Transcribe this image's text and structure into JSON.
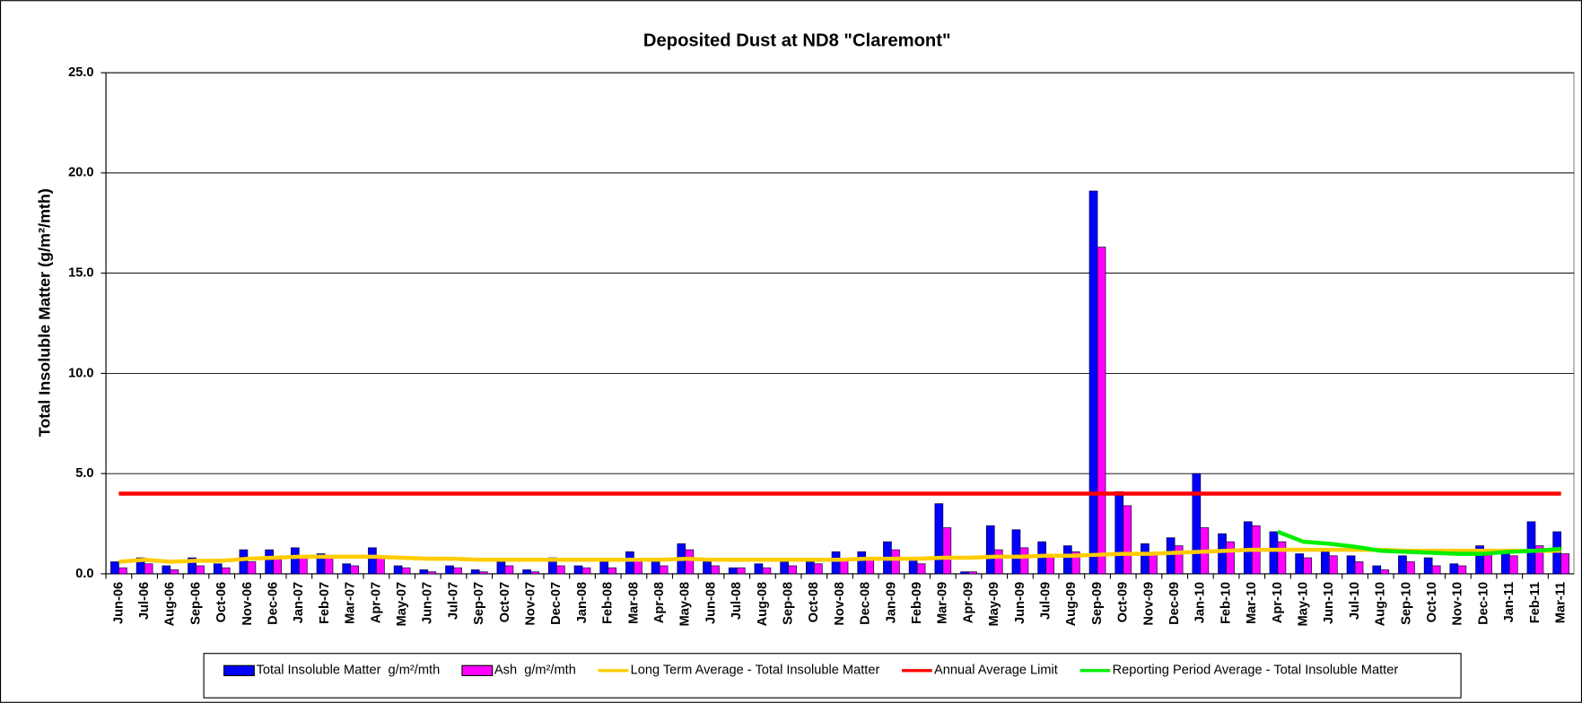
{
  "chart_data": {
    "type": "bar_line",
    "title": "Deposited Dust at ND8 \"Claremont\"",
    "y_label": "Total Insoluble Matter  (g/m²/mth)",
    "categories": [
      "Jun-06",
      "Jul-06",
      "Aug-06",
      "Sep-06",
      "Oct-06",
      "Nov-06",
      "Dec-06",
      "Jan-07",
      "Feb-07",
      "Mar-07",
      "Apr-07",
      "May-07",
      "Jun-07",
      "Jul-07",
      "Sep-07",
      "Oct-07",
      "Nov-07",
      "Dec-07",
      "Jan-08",
      "Feb-08",
      "Mar-08",
      "Apr-08",
      "May-08",
      "Jun-08",
      "Jul-08",
      "Aug-08",
      "Sep-08",
      "Oct-08",
      "Nov-08",
      "Dec-08",
      "Jan-09",
      "Feb-09",
      "Mar-09",
      "Apr-09",
      "May-09",
      "Jun-09",
      "Jul-09",
      "Aug-09",
      "Sep-09",
      "Oct-09",
      "Nov-09",
      "Dec-09",
      "Jan-10",
      "Feb-10",
      "Mar-10",
      "Apr-10",
      "May-10",
      "Jun-10",
      "Jul-10",
      "Aug-10",
      "Sep-10",
      "Oct-10",
      "Nov-10",
      "Dec-10",
      "Jan-11",
      "Feb-11",
      "Mar-11"
    ],
    "series": [
      {
        "name": "Total Insoluble Matter  g/m²/mth",
        "kind": "bar",
        "color": "#0000ff",
        "values": [
          0.6,
          0.8,
          0.4,
          0.8,
          0.5,
          1.2,
          1.2,
          1.3,
          1.0,
          0.5,
          1.3,
          0.4,
          0.2,
          0.4,
          0.2,
          0.6,
          0.2,
          0.8,
          0.4,
          0.6,
          1.1,
          0.6,
          1.5,
          0.6,
          0.3,
          0.5,
          0.6,
          0.6,
          1.1,
          1.1,
          1.6,
          0.7,
          3.5,
          0.1,
          2.4,
          2.2,
          1.6,
          1.4,
          19.1,
          4.1,
          1.5,
          1.8,
          5.0,
          2.0,
          2.6,
          2.1,
          1.0,
          1.1,
          0.9,
          0.4,
          0.9,
          0.8,
          0.5,
          1.4,
          1.0,
          2.6,
          2.1
        ]
      },
      {
        "name": "Ash  g/m²/mth",
        "kind": "bar",
        "color": "#ff00ff",
        "values": [
          0.3,
          0.5,
          0.2,
          0.4,
          0.3,
          0.6,
          0.8,
          0.8,
          0.9,
          0.4,
          0.8,
          0.3,
          0.1,
          0.3,
          0.1,
          0.4,
          0.1,
          0.4,
          0.3,
          0.3,
          0.7,
          0.4,
          1.2,
          0.4,
          0.3,
          0.3,
          0.4,
          0.5,
          0.7,
          0.7,
          1.2,
          0.5,
          2.3,
          0.1,
          1.2,
          1.3,
          0.9,
          1.1,
          16.3,
          3.4,
          1.0,
          1.4,
          2.3,
          1.6,
          2.4,
          1.6,
          0.8,
          0.9,
          0.6,
          0.2,
          0.6,
          0.4,
          0.4,
          1.2,
          0.9,
          1.4,
          1.0
        ]
      },
      {
        "name": "Long Term Average - Total Insoluble Matter",
        "kind": "line",
        "color": "#ffcc00",
        "values": [
          0.6,
          0.7,
          0.6,
          0.65,
          0.65,
          0.75,
          0.8,
          0.85,
          0.85,
          0.85,
          0.85,
          0.8,
          0.75,
          0.75,
          0.7,
          0.7,
          0.7,
          0.7,
          0.7,
          0.7,
          0.7,
          0.7,
          0.75,
          0.7,
          0.7,
          0.7,
          0.7,
          0.7,
          0.7,
          0.75,
          0.75,
          0.75,
          0.8,
          0.8,
          0.85,
          0.85,
          0.9,
          0.9,
          0.95,
          1.0,
          1.0,
          1.05,
          1.1,
          1.15,
          1.2,
          1.2,
          1.2,
          1.2,
          1.2,
          1.2,
          1.15,
          1.15,
          1.15,
          1.15,
          1.15,
          1.15,
          1.15
        ]
      },
      {
        "name": "Annual Average Limit",
        "kind": "line",
        "color": "#ff0000",
        "values": [
          4,
          4,
          4,
          4,
          4,
          4,
          4,
          4,
          4,
          4,
          4,
          4,
          4,
          4,
          4,
          4,
          4,
          4,
          4,
          4,
          4,
          4,
          4,
          4,
          4,
          4,
          4,
          4,
          4,
          4,
          4,
          4,
          4,
          4,
          4,
          4,
          4,
          4,
          4,
          4,
          4,
          4,
          4,
          4,
          4,
          4,
          4,
          4,
          4,
          4,
          4,
          4,
          4,
          4,
          4,
          4,
          4
        ]
      },
      {
        "name": "Reporting Period Average - Total Insoluble Matter",
        "kind": "line",
        "color": "#00ee00",
        "values": [
          null,
          null,
          null,
          null,
          null,
          null,
          null,
          null,
          null,
          null,
          null,
          null,
          null,
          null,
          null,
          null,
          null,
          null,
          null,
          null,
          null,
          null,
          null,
          null,
          null,
          null,
          null,
          null,
          null,
          null,
          null,
          null,
          null,
          null,
          null,
          null,
          null,
          null,
          null,
          null,
          null,
          null,
          null,
          null,
          null,
          2.1,
          1.6,
          1.5,
          1.35,
          1.15,
          1.1,
          1.05,
          1.0,
          1.0,
          1.1,
          1.15,
          1.25
        ]
      }
    ],
    "ylim": [
      0,
      25
    ],
    "yticks": [
      {
        "value": 0,
        "label": "0.0"
      },
      {
        "value": 5,
        "label": "5.0"
      },
      {
        "value": 10,
        "label": "10.0"
      },
      {
        "value": 15,
        "label": "15.0"
      },
      {
        "value": 20,
        "label": "20.0"
      },
      {
        "value": 25,
        "label": "25.0"
      }
    ],
    "grid": true,
    "legend": "bottom"
  }
}
